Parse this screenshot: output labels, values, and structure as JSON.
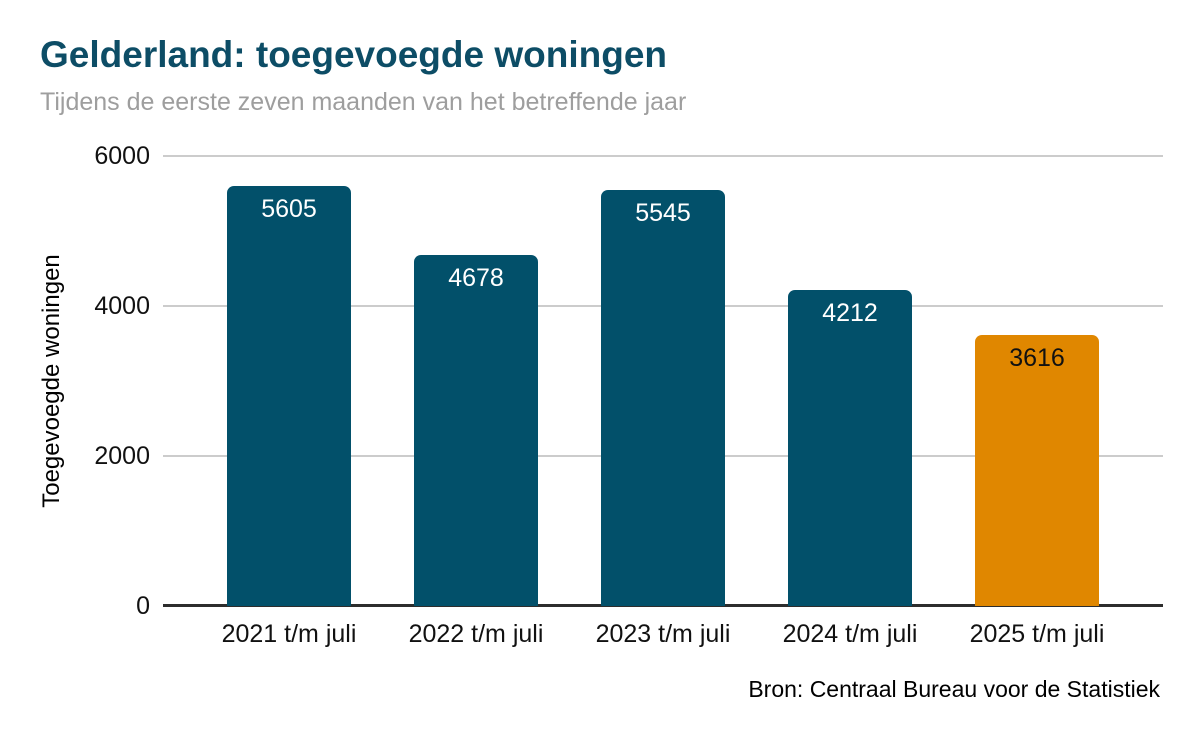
{
  "chart_data": {
    "type": "bar",
    "title": "Gelderland: toegevoegde woningen",
    "subtitle": "Tijdens de eerste zeven maanden van het betreffende jaar",
    "ylabel": "Toegevoegde woningen",
    "source": "Bron: Centraal Bureau voor de Statistiek",
    "categories": [
      "2021 t/m juli",
      "2022 t/m juli",
      "2023 t/m juli",
      "2024 t/m juli",
      "2025 t/m juli"
    ],
    "values": [
      5605,
      4678,
      5545,
      4212,
      3616
    ],
    "highlight_index": 4,
    "ylim": [
      0,
      6000
    ],
    "yticks": [
      0,
      2000,
      4000,
      6000
    ],
    "grid": "horizontal",
    "legend": "none",
    "colors": {
      "bar": "#02506a",
      "highlight_bar": "#e08700",
      "value_label_on_bar": "#ffffff",
      "value_label_on_highlight": "#111111",
      "title": "#0d4d66",
      "subtitle": "#9e9e9e",
      "axis_line": "#2d2d2d",
      "gridline": "#cccccc",
      "tick_label": "#111111"
    }
  }
}
